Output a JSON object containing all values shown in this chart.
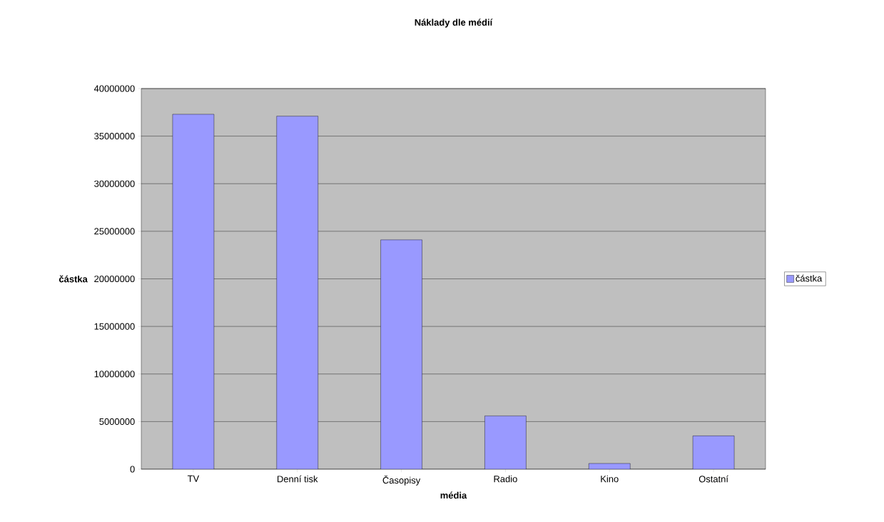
{
  "chart_data": {
    "type": "bar",
    "title": "Náklady dle médií",
    "xlabel": "média",
    "ylabel": "částka",
    "categories": [
      "TV",
      "Denní tisk",
      "Časopisy",
      "Radio",
      "Kino",
      "Ostatní"
    ],
    "series": [
      {
        "name": "částka",
        "color": "#9999ff",
        "values": [
          37300000,
          37100000,
          24100000,
          5600000,
          600000,
          3500000
        ]
      }
    ],
    "ylim": [
      0,
      40000000
    ],
    "yticks": [
      0,
      5000000,
      10000000,
      15000000,
      20000000,
      25000000,
      30000000,
      35000000,
      40000000
    ],
    "grid": "y",
    "legend": "right"
  }
}
